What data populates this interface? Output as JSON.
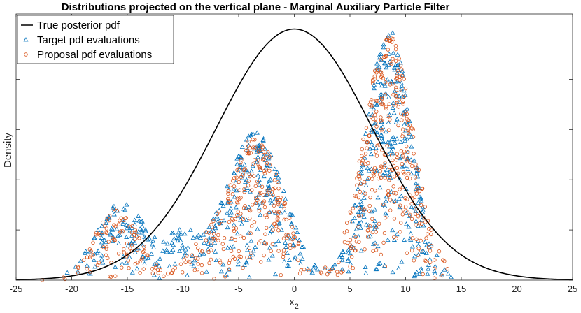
{
  "chart_data": {
    "type": "scatter",
    "title": "Distributions projected on the vertical plane - Marginal Auxiliary Particle Filter",
    "xlabel": "x",
    "xlabel_subscript": "2",
    "ylabel": "Density",
    "xlim": [
      -25,
      25
    ],
    "ylim": [
      0,
      1.06
    ],
    "xticks": [
      -25,
      -20,
      -15,
      -10,
      -5,
      0,
      5,
      10,
      15,
      20,
      25
    ],
    "yticks_count": 6,
    "grid": false,
    "legend_position": "top-left",
    "series": [
      {
        "name": "True posterior pdf",
        "kind": "line",
        "color": "#000000",
        "distribution": "gaussian",
        "mean": 0,
        "std": 7,
        "peak": 1.0
      },
      {
        "name": "Target pdf evaluations",
        "kind": "scatter",
        "marker": "triangle",
        "color": "#0072BD",
        "count": 700,
        "modes": [
          {
            "center": -15.5,
            "width": 2.3,
            "height": 0.31
          },
          {
            "center": -3.5,
            "width": 2.6,
            "height": 0.6
          },
          {
            "center": 8.5,
            "width": 2.0,
            "height": 1.0
          },
          {
            "center": -10.0,
            "width": 1.6,
            "height": 0.16
          }
        ]
      },
      {
        "name": "Proposal pdf evaluations",
        "kind": "scatter",
        "marker": "circle",
        "color": "#D95319",
        "count": 700,
        "modes": [
          {
            "center": -16.0,
            "width": 2.0,
            "height": 0.29
          },
          {
            "center": -3.5,
            "width": 2.4,
            "height": 0.57
          },
          {
            "center": 8.5,
            "width": 2.2,
            "height": 0.99
          },
          {
            "center": -8.5,
            "width": 1.5,
            "height": 0.1
          }
        ]
      }
    ]
  }
}
